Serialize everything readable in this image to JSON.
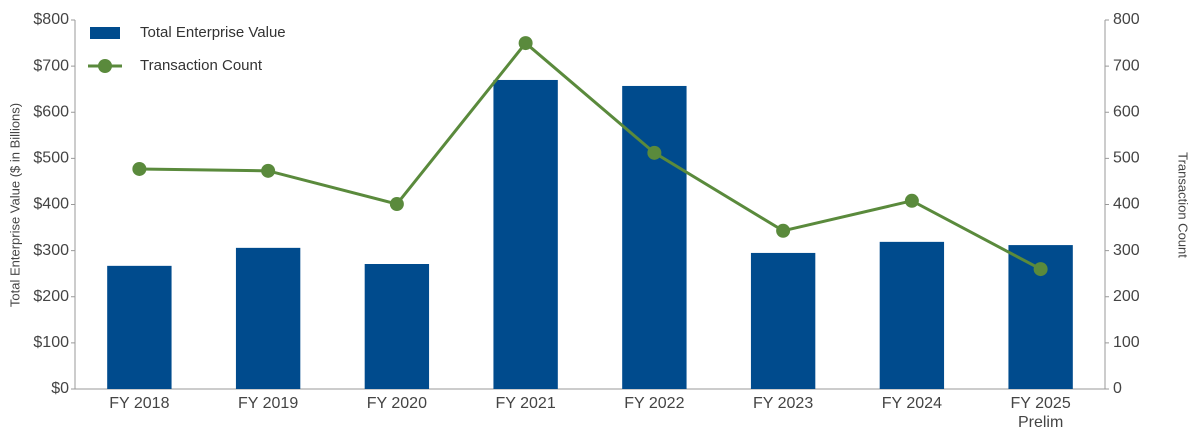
{
  "chart_data": {
    "type": "bar-line",
    "categories": [
      "FY 2018",
      "FY 2019",
      "FY 2020",
      "FY 2021",
      "FY 2022",
      "FY 2023",
      "FY 2024",
      "FY 2025\nPrelim"
    ],
    "series": [
      {
        "name": "Total Enterprise Value",
        "type": "bar",
        "color": "#004b8d",
        "values": [
          267,
          306,
          271,
          670,
          657,
          295,
          319,
          312
        ]
      },
      {
        "name": "Transaction Count",
        "type": "line",
        "axis": "y2",
        "color": "#5a8a3c",
        "values": [
          477,
          473,
          401,
          750,
          512,
          343,
          408,
          260
        ]
      }
    ],
    "y_label": "Total Enterprise Value ($ in Billions)",
    "y2_label": "Transaction Count",
    "ylim": [
      0,
      800
    ],
    "yticks": [
      {
        "value": 0,
        "label": "$0"
      },
      {
        "value": 100,
        "label": "$100"
      },
      {
        "value": 200,
        "label": "$200"
      },
      {
        "value": 300,
        "label": "$300"
      },
      {
        "value": 400,
        "label": "$400"
      },
      {
        "value": 500,
        "label": "$500"
      },
      {
        "value": 600,
        "label": "$600"
      },
      {
        "value": 700,
        "label": "$700"
      },
      {
        "value": 800,
        "label": "$800"
      }
    ],
    "y2lim": [
      0,
      800
    ],
    "y2ticks": [
      0,
      100,
      200,
      300,
      400,
      500,
      600,
      700,
      800
    ],
    "legend": "top-left"
  }
}
